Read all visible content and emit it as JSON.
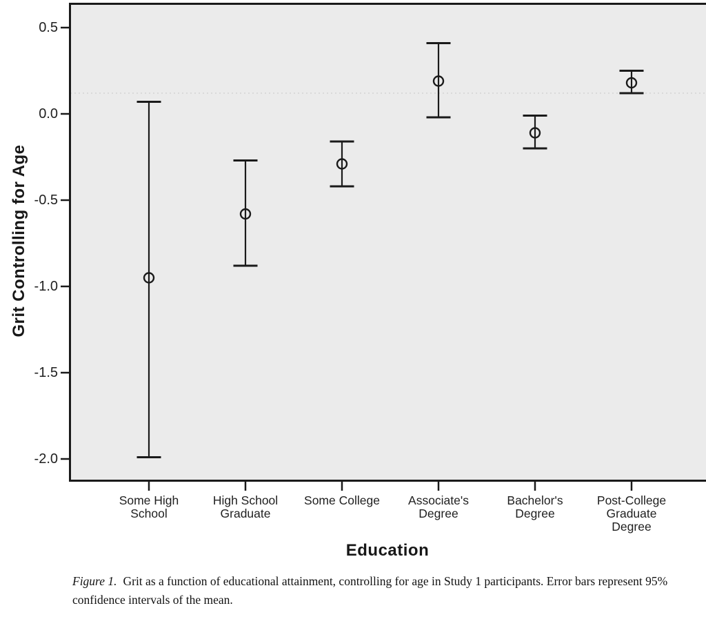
{
  "colors": {
    "ink": "#1a1a1a",
    "plot_background": "#ebebeb",
    "reference_line": "#d3d3d3",
    "text": "#171717"
  },
  "chart_data": {
    "type": "errorbar",
    "title": "",
    "xlabel": "Education",
    "ylabel": "Grit Controlling for Age",
    "categories": [
      "Some High School",
      "High School Graduate",
      "Some College",
      "Associate's Degree",
      "Bachelor's Degree",
      "Post-College Graduate Degree"
    ],
    "means": [
      -0.95,
      -0.58,
      -0.29,
      0.19,
      -0.11,
      0.18
    ],
    "ci_low": [
      -1.99,
      -0.88,
      -0.42,
      -0.02,
      -0.2,
      0.12
    ],
    "ci_high": [
      0.07,
      -0.27,
      -0.16,
      0.41,
      -0.01,
      0.25
    ],
    "error_bar_meaning": "95% confidence intervals of the mean",
    "marker": "open-circle",
    "yticks": [
      "0.5",
      "0.0",
      "-0.5",
      "-1.0",
      "-1.5",
      "-2.0"
    ],
    "ylim": [
      -2.13,
      0.64
    ],
    "grid": false,
    "legend": "none",
    "reference_line_y": 0.12
  },
  "x_axis": {
    "tick_lines": [
      [
        "Some High",
        "School"
      ],
      [
        "High School",
        "Graduate"
      ],
      [
        "Some College"
      ],
      [
        "Associate's",
        "Degree"
      ],
      [
        "Bachelor's",
        "Degree"
      ],
      [
        "Post-College",
        "Graduate",
        "Degree"
      ]
    ]
  },
  "caption": {
    "label": "Figure 1.",
    "text": "Grit as a function of educational attainment, controlling for age in Study 1 participants. Error bars represent 95% confidence intervals of the mean."
  }
}
